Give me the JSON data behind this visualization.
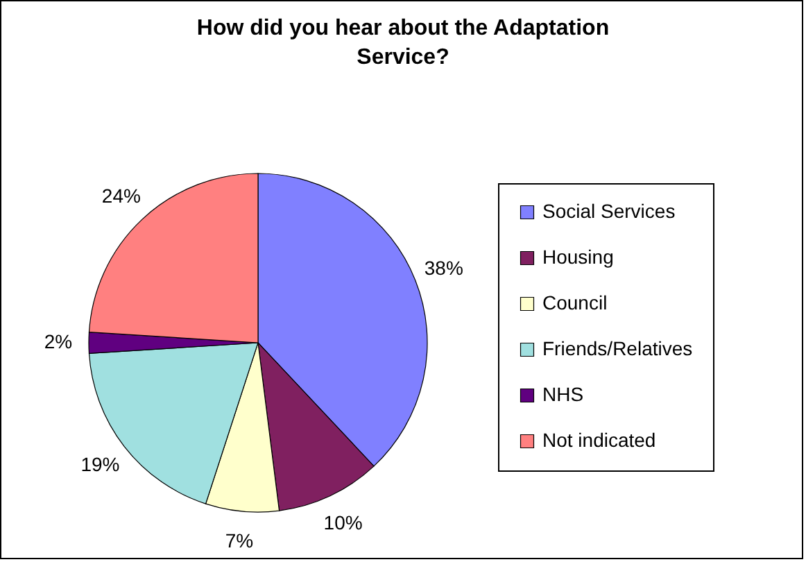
{
  "chart_data": {
    "type": "pie",
    "title": "How did you hear about the Adaptation Service?",
    "categories": [
      "Social Services",
      "Housing",
      "Council",
      "Friends/Relatives",
      "NHS",
      "Not indicated"
    ],
    "values": [
      38,
      10,
      7,
      19,
      2,
      24
    ],
    "colors": [
      "#8080ff",
      "#802060",
      "#ffffcc",
      "#a0e0e0",
      "#600080",
      "#ff8080"
    ],
    "value_labels": [
      "38%",
      "10%",
      "7%",
      "19%",
      "2%",
      "24%"
    ],
    "legend": "right"
  }
}
